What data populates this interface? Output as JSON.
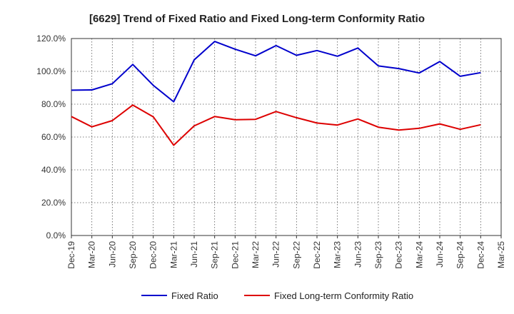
{
  "chart_data": {
    "type": "line",
    "title": "[6629]  Trend of Fixed Ratio and Fixed Long-term Conformity Ratio",
    "xlabel": "",
    "ylabel": "",
    "ylim": [
      0,
      120
    ],
    "y_ticks": [
      "0.0%",
      "20.0%",
      "40.0%",
      "60.0%",
      "80.0%",
      "100.0%",
      "120.0%"
    ],
    "categories": [
      "Dec-19",
      "Mar-20",
      "Jun-20",
      "Sep-20",
      "Dec-20",
      "Mar-21",
      "Jun-21",
      "Sep-21",
      "Dec-21",
      "Mar-22",
      "Jun-22",
      "Sep-22",
      "Dec-22",
      "Mar-23",
      "Jun-23",
      "Sep-23",
      "Dec-23",
      "Mar-24",
      "Jun-24",
      "Sep-24",
      "Dec-24",
      "Mar-25"
    ],
    "series": [
      {
        "name": "Fixed Ratio",
        "color": "#0000cc",
        "values": [
          88.5,
          88.7,
          92.5,
          104.2,
          91.5,
          81.5,
          107.0,
          118.2,
          113.5,
          109.5,
          115.7,
          109.8,
          112.7,
          109.2,
          114.2,
          103.3,
          101.7,
          99.0,
          106.0,
          97.0,
          99.2,
          null
        ]
      },
      {
        "name": "Fixed Long-term Conformity Ratio",
        "color": "#dd0000",
        "values": [
          72.5,
          66.2,
          70.0,
          79.5,
          72.3,
          55.0,
          66.8,
          72.5,
          70.5,
          70.8,
          75.5,
          71.8,
          68.5,
          67.3,
          71.0,
          66.0,
          64.2,
          65.3,
          68.0,
          64.7,
          67.5,
          null
        ]
      }
    ],
    "grid": true,
    "legend_position": "bottom-center"
  }
}
